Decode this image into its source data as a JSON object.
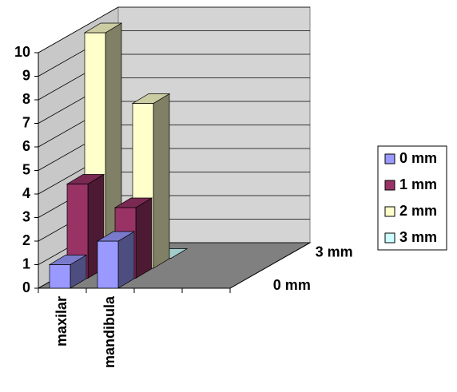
{
  "chart_data": {
    "type": "bar3d",
    "categories": [
      "maxilar",
      "mandibula"
    ],
    "series": [
      {
        "name": "0 mm",
        "color": "#9999ff",
        "values": [
          1,
          2
        ]
      },
      {
        "name": "1 mm",
        "color": "#993366",
        "values": [
          4,
          3
        ]
      },
      {
        "name": "2 mm",
        "color": "#ffffcc",
        "values": [
          10,
          7
        ]
      },
      {
        "name": "3 mm",
        "color": "#ccffff",
        "values": [
          0,
          0
        ]
      }
    ],
    "ylim": [
      0,
      10
    ],
    "yticks": [
      0,
      1,
      2,
      3,
      4,
      5,
      6,
      7,
      8,
      9,
      10
    ],
    "grid": true,
    "legend": "right"
  }
}
